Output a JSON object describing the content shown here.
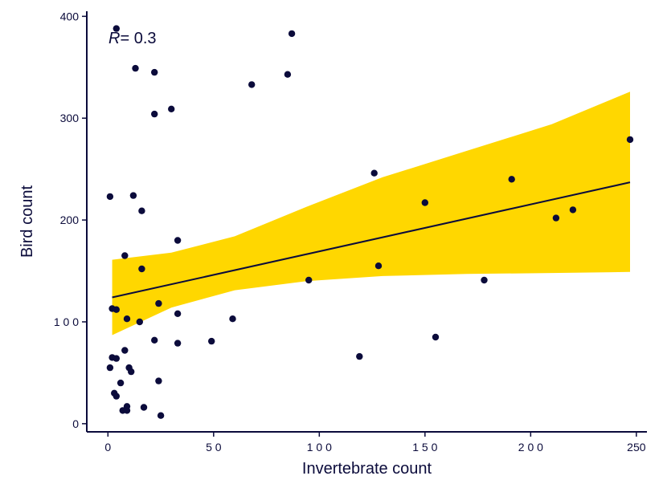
{
  "chart_data": {
    "type": "scatter",
    "xlabel": "Invertebrate count",
    "ylabel": "Bird count",
    "xlim": [
      -10,
      255
    ],
    "ylim": [
      -8,
      405
    ],
    "x_ticks": [
      0,
      50,
      100,
      150,
      200,
      250
    ],
    "x_tick_labels": [
      "0",
      "5 0",
      "1 0 0",
      "1 5 0",
      "2 0 0",
      "250"
    ],
    "y_ticks": [
      0,
      100,
      200,
      300,
      400
    ],
    "y_tick_labels": [
      "0",
      "1 0 0",
      "200",
      "300",
      "400"
    ],
    "annotation": {
      "symbol": "R",
      "text": "= 0.3"
    },
    "grid": false,
    "colors": {
      "points": "#0b0b3b",
      "band": "#ffd700",
      "line": "#0b0b3b",
      "axis": "#0b0b3b"
    },
    "points": [
      [
        4,
        388
      ],
      [
        13,
        349
      ],
      [
        22,
        345
      ],
      [
        30,
        309
      ],
      [
        22,
        304
      ],
      [
        68,
        333
      ],
      [
        85,
        343
      ],
      [
        87,
        383
      ],
      [
        1,
        223
      ],
      [
        12,
        224
      ],
      [
        16,
        209
      ],
      [
        33,
        180
      ],
      [
        8,
        165
      ],
      [
        16,
        152
      ],
      [
        126,
        246
      ],
      [
        191,
        240
      ],
      [
        150,
        217
      ],
      [
        247,
        279
      ],
      [
        212,
        202
      ],
      [
        220,
        210
      ],
      [
        128,
        155
      ],
      [
        95,
        141
      ],
      [
        178,
        141
      ],
      [
        2,
        113
      ],
      [
        4,
        112
      ],
      [
        24,
        118
      ],
      [
        33,
        108
      ],
      [
        9,
        103
      ],
      [
        15,
        100
      ],
      [
        59,
        103
      ],
      [
        22,
        82
      ],
      [
        33,
        79
      ],
      [
        49,
        81
      ],
      [
        155,
        85
      ],
      [
        119,
        66
      ],
      [
        2,
        65
      ],
      [
        4,
        64
      ],
      [
        8,
        72
      ],
      [
        1,
        55
      ],
      [
        10,
        55
      ],
      [
        11,
        51
      ],
      [
        6,
        40
      ],
      [
        24,
        42
      ],
      [
        3,
        30
      ],
      [
        4,
        27
      ],
      [
        9,
        17
      ],
      [
        17,
        16
      ],
      [
        7,
        13
      ],
      [
        9,
        13
      ],
      [
        25,
        8
      ]
    ],
    "fit": {
      "x": [
        2,
        247
      ],
      "y": [
        124,
        237
      ]
    },
    "confidence_band": {
      "x": [
        2,
        30,
        60,
        94,
        130,
        170,
        210,
        247
      ],
      "lower": [
        87,
        114,
        131,
        140,
        145,
        147,
        148,
        149
      ],
      "upper": [
        161,
        168,
        184,
        213,
        242,
        268,
        294,
        326
      ]
    }
  }
}
